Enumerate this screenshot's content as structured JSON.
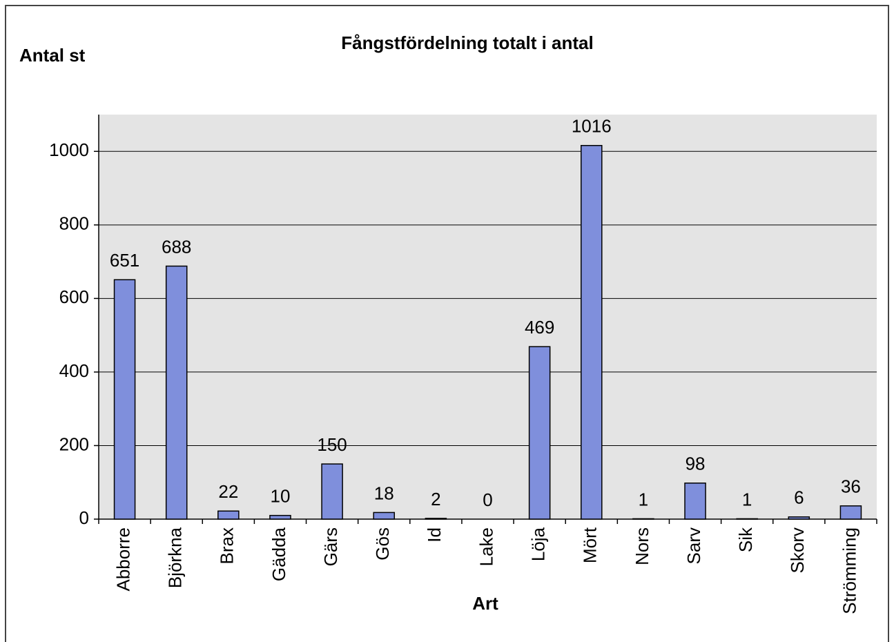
{
  "chart_data": {
    "type": "bar",
    "title": "Fångstfördelning totalt i antal",
    "y_label": "Antal st",
    "x_label": "Art",
    "categories": [
      "Abborre",
      "Björkna",
      "Brax",
      "Gädda",
      "Gärs",
      "Gös",
      "Id",
      "Lake",
      "Löja",
      "Mört",
      "Nors",
      "Sarv",
      "Sik",
      "Skorv",
      "Strömming"
    ],
    "values": [
      651,
      688,
      22,
      10,
      150,
      18,
      2,
      0,
      469,
      1016,
      1,
      98,
      1,
      6,
      36
    ],
    "color": "#7f8fdc",
    "ylim": [
      0,
      1100
    ],
    "yticks": [
      0,
      200,
      400,
      600,
      800,
      1000
    ],
    "grid": true
  }
}
